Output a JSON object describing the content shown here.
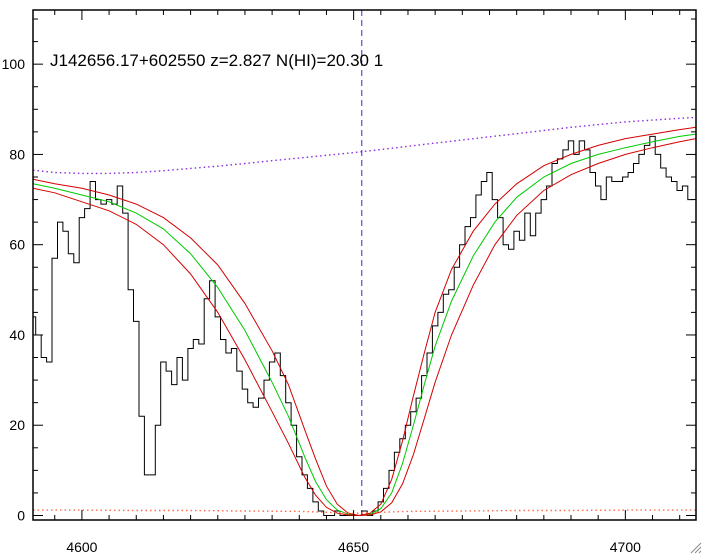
{
  "chart_data": {
    "type": "line",
    "title": "J142656.17+602550 z=2.827 N(HI)=20.30 1",
    "xlabel": "",
    "ylabel": "",
    "xlim": [
      4591,
      4713
    ],
    "ylim": [
      -1,
      112
    ],
    "x_ticks": [
      4600,
      4650,
      4700
    ],
    "y_ticks": [
      0,
      20,
      40,
      60,
      80,
      100
    ],
    "grid": false,
    "legend": "none",
    "marker_line_x": 4651.5,
    "colors": {
      "flux": "#000000",
      "fit_center": "#00c800",
      "fit_bounds": "#d40000",
      "continuum": "#8a2be2",
      "error": "#ff6a4a",
      "marker_line": "#3030c8"
    },
    "series": [
      {
        "style": "step",
        "color": "#000000",
        "x": [
          4591.0,
          4592.0,
          4593.0,
          4594.0,
          4595.0,
          4596.0,
          4597.0,
          4598.0,
          4599.0,
          4600.0,
          4601.0,
          4602.0,
          4603.0,
          4604.0,
          4605.0,
          4606.0,
          4607.0,
          4608.0,
          4609.0,
          4610.0,
          4611.0,
          4612.0,
          4613.0,
          4614.0,
          4615.0,
          4616.0,
          4617.0,
          4618.0,
          4619.0,
          4620.0,
          4621.0,
          4622.0,
          4623.0,
          4624.0,
          4625.0,
          4626.0,
          4627.0,
          4628.0,
          4629.0,
          4630.0,
          4631.0,
          4632.0,
          4633.0,
          4634.0,
          4635.0,
          4636.0,
          4637.0,
          4638.0,
          4639.0,
          4640.0,
          4641.0,
          4642.0,
          4643.0,
          4644.0,
          4645.0,
          4646.0,
          4647.0,
          4648.0,
          4649.0,
          4650.0,
          4651.0,
          4652.0,
          4653.0,
          4654.0,
          4655.0,
          4656.0,
          4657.0,
          4658.0,
          4659.0,
          4660.0,
          4661.0,
          4662.0,
          4663.0,
          4664.0,
          4665.0,
          4666.0,
          4667.0,
          4668.0,
          4669.0,
          4670.0,
          4671.0,
          4672.0,
          4673.0,
          4674.0,
          4675.0,
          4676.0,
          4677.0,
          4678.0,
          4679.0,
          4680.0,
          4681.0,
          4682.0,
          4683.0,
          4684.0,
          4685.0,
          4686.0,
          4687.0,
          4688.0,
          4689.0,
          4690.0,
          4691.0,
          4692.0,
          4693.0,
          4694.0,
          4695.0,
          4696.0,
          4697.0,
          4698.0,
          4699.0,
          4700.0,
          4701.0,
          4702.0,
          4703.0,
          4704.0,
          4705.0,
          4706.0,
          4707.0,
          4708.0,
          4709.0,
          4710.0,
          4711.0,
          4712.0
        ],
        "y": [
          44,
          40,
          35,
          34,
          57,
          65,
          63,
          58,
          56,
          66,
          68,
          74,
          70,
          69,
          70,
          69,
          73,
          67,
          50,
          43,
          22,
          9,
          9,
          20,
          34,
          32,
          29,
          35,
          30,
          37,
          39,
          38,
          48,
          52,
          44,
          39,
          36,
          37,
          32,
          28,
          25,
          24,
          26,
          30,
          34,
          36,
          31,
          25,
          20,
          13,
          9,
          6,
          3,
          1,
          0,
          0,
          1,
          0,
          0,
          0,
          0,
          1,
          0,
          1,
          3,
          6,
          10,
          14,
          17,
          20,
          23,
          26,
          31,
          36,
          42,
          45,
          49,
          50,
          55,
          60,
          64,
          66,
          71,
          74,
          76,
          70,
          66,
          60,
          59,
          63,
          61,
          67,
          62,
          67,
          70,
          73,
          78,
          79,
          81,
          83,
          80,
          83,
          81,
          76,
          73,
          70,
          75,
          74,
          74,
          75,
          76,
          78,
          80,
          82,
          84,
          80,
          77,
          75,
          74,
          72,
          73,
          70
        ]
      },
      {
        "style": "line",
        "color": "#00c800",
        "x": [
          4591,
          4595,
          4600,
          4605,
          4610,
          4615,
          4620,
          4625,
          4630,
          4635,
          4638,
          4641,
          4643,
          4645,
          4647,
          4649,
          4651,
          4653,
          4655,
          4657,
          4659,
          4661,
          4663,
          4665,
          4668,
          4672,
          4676,
          4680,
          4685,
          4690,
          4695,
          4700,
          4705,
          4710,
          4713
        ],
        "y": [
          73.5,
          72.5,
          71.0,
          69.5,
          67.0,
          63.5,
          58.0,
          50.5,
          41.0,
          29.5,
          22.0,
          13.0,
          7.5,
          3.5,
          1.2,
          0.3,
          0.0,
          0.3,
          1.5,
          5.0,
          11.5,
          20.0,
          29.0,
          37.5,
          47.5,
          57.5,
          65.0,
          70.5,
          75.0,
          78.0,
          80.0,
          81.5,
          82.8,
          84.0,
          84.5
        ]
      },
      {
        "style": "line",
        "color": "#d40000",
        "x": [
          4591,
          4595,
          4600,
          4605,
          4610,
          4615,
          4620,
          4625,
          4630,
          4635,
          4638,
          4641,
          4643,
          4645,
          4647,
          4649,
          4651,
          4653,
          4655,
          4657,
          4659,
          4661,
          4663,
          4665,
          4668,
          4672,
          4676,
          4680,
          4685,
          4690,
          4695,
          4700,
          4705,
          4710,
          4713
        ],
        "y": [
          74.5,
          73.5,
          72.5,
          71.0,
          69.0,
          66.0,
          61.5,
          55.5,
          47.0,
          36.5,
          29.0,
          19.0,
          12.5,
          6.5,
          2.5,
          0.5,
          0.0,
          0.5,
          2.5,
          8.0,
          16.5,
          26.5,
          36.0,
          45.0,
          54.5,
          63.0,
          69.0,
          73.5,
          77.5,
          80.0,
          82.0,
          83.5,
          84.5,
          85.5,
          86.0
        ]
      },
      {
        "style": "line",
        "color": "#d40000",
        "x": [
          4591,
          4595,
          4600,
          4605,
          4610,
          4615,
          4620,
          4625,
          4630,
          4635,
          4638,
          4641,
          4643,
          4645,
          4647,
          4649,
          4651,
          4653,
          4655,
          4657,
          4659,
          4661,
          4663,
          4665,
          4668,
          4672,
          4676,
          4680,
          4685,
          4690,
          4695,
          4700,
          4705,
          4710,
          4713
        ],
        "y": [
          72.5,
          71.5,
          69.5,
          67.5,
          64.5,
          60.0,
          53.5,
          45.0,
          34.5,
          23.0,
          16.0,
          8.5,
          4.5,
          1.8,
          0.5,
          0.1,
          0.0,
          0.1,
          0.8,
          2.8,
          7.0,
          13.5,
          21.5,
          29.5,
          40.0,
          51.0,
          60.0,
          66.5,
          72.0,
          75.5,
          78.0,
          80.0,
          81.5,
          82.8,
          83.5
        ]
      },
      {
        "style": "dotted",
        "color": "#8a2be2",
        "x": [
          4591,
          4595,
          4600,
          4605,
          4610,
          4615,
          4620,
          4625,
          4630,
          4635,
          4640,
          4645,
          4650,
          4655,
          4660,
          4665,
          4670,
          4675,
          4680,
          4685,
          4690,
          4695,
          4700,
          4705,
          4710,
          4713
        ],
        "y": [
          76.5,
          76.0,
          75.8,
          75.8,
          76.0,
          76.4,
          76.9,
          77.4,
          78.0,
          78.6,
          79.2,
          79.8,
          80.4,
          81.1,
          81.8,
          82.5,
          83.2,
          83.9,
          84.6,
          85.3,
          86.0,
          86.6,
          87.2,
          87.6,
          88.0,
          88.2
        ]
      },
      {
        "style": "dotted",
        "color": "#ff6a4a",
        "x": [
          4591,
          4600,
          4610,
          4620,
          4630,
          4640,
          4645,
          4650,
          4655,
          4660,
          4670,
          4680,
          4690,
          4700,
          4713
        ],
        "y": [
          1.2,
          1.2,
          1.1,
          1.1,
          1.0,
          0.9,
          0.7,
          0.5,
          0.7,
          0.9,
          1.0,
          1.1,
          1.1,
          1.2,
          1.2
        ]
      }
    ]
  }
}
